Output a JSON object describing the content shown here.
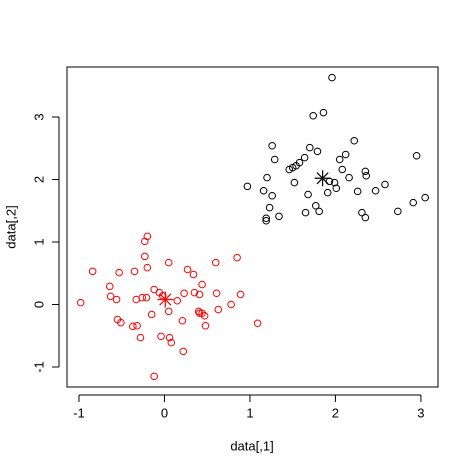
{
  "chart_data": {
    "type": "scatter",
    "xlabel": "data[,1]",
    "ylabel": "data[,2]",
    "xlim": [
      -1.14,
      3.2
    ],
    "ylim": [
      -1.32,
      3.8
    ],
    "xticks": [
      -1,
      0,
      1,
      2,
      3
    ],
    "yticks": [
      -1,
      0,
      1,
      2,
      3
    ],
    "series": [
      {
        "color": "#ff0000",
        "marker": "circle",
        "x": [
          -0.98,
          -0.84,
          -0.64,
          -0.63,
          -0.56,
          -0.53,
          -0.55,
          -0.51,
          -0.35,
          -0.33,
          -0.26,
          -0.21,
          -0.23,
          -0.23,
          -0.2,
          -0.2,
          -0.37,
          -0.32,
          -0.28,
          -0.15,
          -0.12,
          -0.06,
          -0.02,
          -0.04,
          -0.12,
          0.05,
          0.06,
          0.08,
          0.05,
          0.15,
          0.23,
          0.21,
          0.22,
          0.27,
          0.34,
          0.35,
          0.41,
          0.4,
          0.44,
          0.41,
          0.44,
          0.47,
          0.48,
          0.61,
          0.6,
          0.63,
          0.78,
          0.85,
          0.89,
          1.09
        ],
        "y": [
          0.03,
          0.53,
          0.29,
          0.13,
          0.08,
          0.51,
          -0.24,
          -0.29,
          0.53,
          0.08,
          0.11,
          0.11,
          0.77,
          1.01,
          1.09,
          0.59,
          -0.35,
          -0.34,
          -0.53,
          -0.16,
          0.24,
          0.19,
          0.14,
          -0.51,
          -1.15,
          -0.11,
          -0.53,
          -0.61,
          0.67,
          0.06,
          0.18,
          -0.26,
          -0.75,
          0.56,
          0.48,
          0.19,
          0.16,
          -0.11,
          0.32,
          -0.14,
          -0.14,
          -0.18,
          -0.34,
          0.18,
          0.67,
          -0.08,
          0,
          0.75,
          0.16,
          -0.3
        ]
      },
      {
        "color": "#000000",
        "marker": "circle",
        "x": [
          0.97,
          1.16,
          1.2,
          1.26,
          1.29,
          1.26,
          1.23,
          1.19,
          1.19,
          1.34,
          1.46,
          1.5,
          1.54,
          1.58,
          1.52,
          1.64,
          1.68,
          1.7,
          1.65,
          1.74,
          1.79,
          1.77,
          1.81,
          1.86,
          1.93,
          1.96,
          1.99,
          1.91,
          2.01,
          2.05,
          2.08,
          2.12,
          2.16,
          2.22,
          2.26,
          2.31,
          2.35,
          2.35,
          2.36,
          2.47,
          2.58,
          2.73,
          2.91,
          2.95,
          3.05
        ],
        "y": [
          1.89,
          1.82,
          2.03,
          2.54,
          2.32,
          1.74,
          1.55,
          1.38,
          1.34,
          1.41,
          2.16,
          2.19,
          2.22,
          2.27,
          1.95,
          2.35,
          1.76,
          2.51,
          1.47,
          3.02,
          2.45,
          1.58,
          1.49,
          3.07,
          1.97,
          3.63,
          1.95,
          1.79,
          1.86,
          2.32,
          2.16,
          2.4,
          2.03,
          2.62,
          1.81,
          1.47,
          1.39,
          2.13,
          2.06,
          1.82,
          1.92,
          1.49,
          1.63,
          2.38,
          1.71
        ]
      },
      {
        "color": "#ff0000",
        "marker": "asterisk",
        "x": [
          0.01
        ],
        "y": [
          0.08
        ]
      },
      {
        "color": "#000000",
        "marker": "asterisk",
        "x": [
          1.85
        ],
        "y": [
          2.02
        ]
      }
    ]
  }
}
